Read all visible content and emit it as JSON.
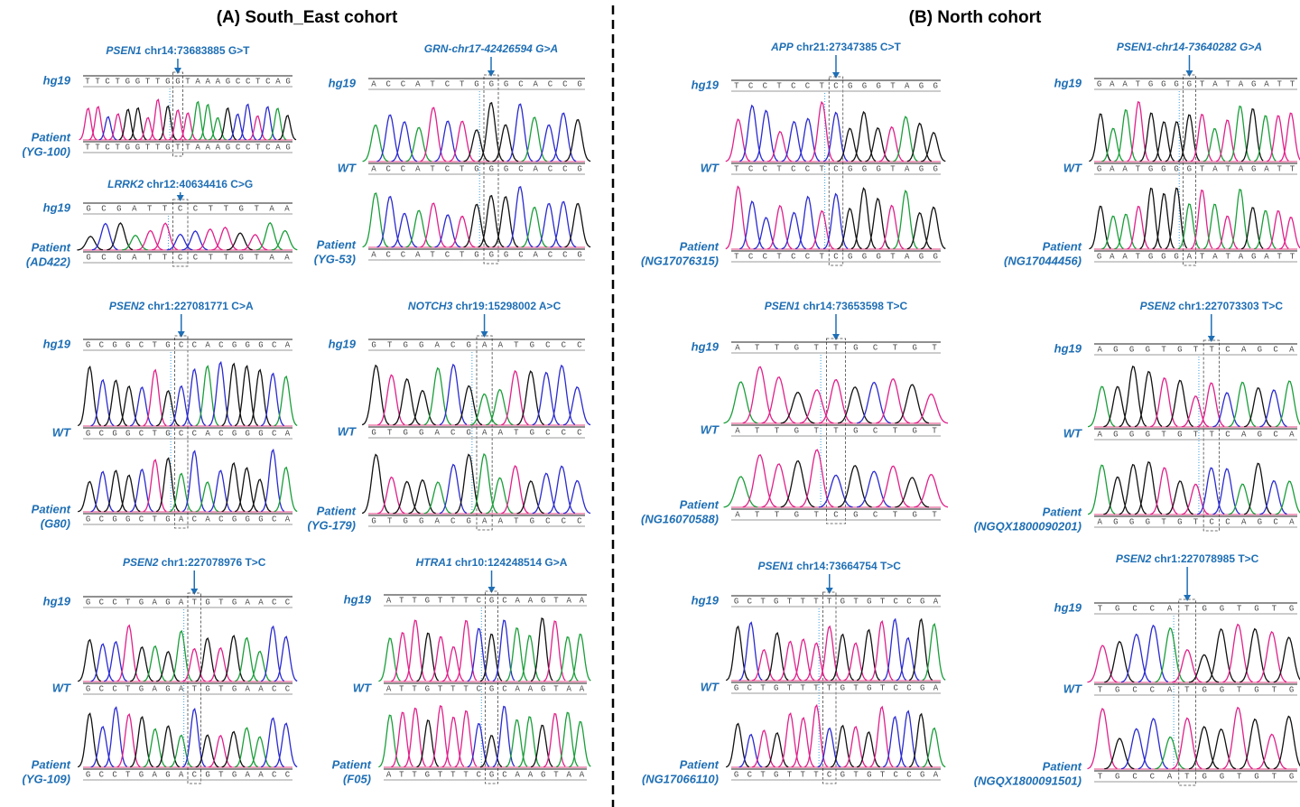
{
  "panels": [
    {
      "title": "(A) South_East cohort",
      "figures": [
        {
          "gene": "PSEN1",
          "locus": "chr14:73683885 G>T",
          "rows": [
            {
              "label": "hg19",
              "sequence": "TTCTGGTTGGTAAAGCCTCAG"
            },
            {
              "label": "Patient",
              "sample": "(YG-100)",
              "sequence": "TTCTGGTTGTTAAAGCCTCAG"
            }
          ]
        },
        {
          "gene": "LRRK2",
          "locus": "chr12:40634416 C>G",
          "rows": [
            {
              "label": "hg19",
              "sequence": "GCGATTCCTTGTAA"
            },
            {
              "label": "Patient",
              "sample": "(AD422)",
              "sequence": "GCGATTCCTTGTAA"
            }
          ]
        },
        {
          "gene": "GRN-chr17-42426594 G>A",
          "rows": [
            {
              "label": "hg19",
              "sequence": "ACCATCTGGGCACCG"
            },
            {
              "label": "WT",
              "sequence": "ACCATCTGGGCACCG"
            },
            {
              "label": "Patient",
              "sample": "(YG-53)",
              "sequence": "ACCATCTGGGCACCG"
            }
          ]
        },
        {
          "gene": "PSEN2",
          "locus": "chr1:227081771 C>A",
          "rows": [
            {
              "label": "hg19",
              "sequence": "GCGGCTGCCACGGGCA"
            },
            {
              "label": "WT",
              "sequence": "GCGGCTGCCACGGGCA"
            },
            {
              "label": "Patient",
              "sample": "(G80)",
              "sequence": "GCGGCTGACACGGGCA"
            }
          ]
        },
        {
          "gene": "NOTCH3",
          "locus": "chr19:15298002 A>C",
          "rows": [
            {
              "label": "hg19",
              "sequence": "GTGGACGAATGCCC"
            },
            {
              "label": "WT",
              "sequence": "GTGGACGAATGCCC"
            },
            {
              "label": "Patient",
              "sample": "(YG-179)",
              "sequence": "GTGGACGAATGCCC"
            }
          ]
        },
        {
          "gene": "PSEN2",
          "locus": "chr1:227078976 T>C",
          "rows": [
            {
              "label": "hg19",
              "sequence": "GCCTGAGATGTGAACC"
            },
            {
              "label": "WT",
              "sequence": "GCCTGAGATGTGAACC"
            },
            {
              "label": "Patient",
              "sample": "(YG-109)",
              "sequence": "GCCTGAGACGTGAACC"
            }
          ]
        },
        {
          "gene": "HTRA1",
          "locus": "chr10:124248514 G>A",
          "rows": [
            {
              "label": "hg19",
              "sequence": "ATTGTTTCGCAAGTAA"
            },
            {
              "label": "WT",
              "sequence": "ATTGTTTCGCAAGTAA"
            },
            {
              "label": "Patient",
              "sample": "(F05)",
              "sequence": "ATTGTTTCGCAAGTAA"
            }
          ]
        }
      ]
    },
    {
      "title": "(B) North cohort",
      "figures": [
        {
          "gene": "APP",
          "locus": "chr21:27347385 C>T",
          "rows": [
            {
              "label": "hg19",
              "sequence": "TCCTCCTCGGGTAGG"
            },
            {
              "label": "WT",
              "sequence": "TCCTCCTCGGGTAGG"
            },
            {
              "label": "Patient",
              "sample": "(NG17076315)",
              "sequence": "TCCTCCTCGGGTAGG"
            }
          ]
        },
        {
          "gene": "PSEN1",
          "locus": "chr14:73653598 T>C",
          "rows": [
            {
              "label": "hg19",
              "sequence": "ATTGTTGCTGT"
            },
            {
              "label": "WT",
              "sequence": "ATTGTTGCTGT"
            },
            {
              "label": "Patient",
              "sample": "(NG16070588)",
              "sequence": "ATTGTCGCTGT"
            }
          ]
        },
        {
          "gene": "PSEN1",
          "locus": "chr14:73664754 T>C",
          "rows": [
            {
              "label": "hg19",
              "sequence": "GCTGTTTTGTGTCCGA"
            },
            {
              "label": "WT",
              "sequence": "GCTGTTTTGTGTCCGA"
            },
            {
              "label": "Patient",
              "sample": "(NG17066110)",
              "sequence": "GCTGTTTCGTGTCCGA"
            }
          ]
        },
        {
          "gene": "PSEN1-chr14-73640282 G>A",
          "rows": [
            {
              "label": "hg19",
              "sequence": "GAATGGGGTATAGATT"
            },
            {
              "label": "WT",
              "sequence": "GAATGGGGTATAGATT"
            },
            {
              "label": "Patient",
              "sample": "(NG17044456)",
              "sequence": "GAATGGGATATAGATT"
            }
          ]
        },
        {
          "gene": "PSEN2",
          "locus": "chr1:227073303 T>C",
          "rows": [
            {
              "label": "hg19",
              "sequence": "AGGGTGTTCAGCA"
            },
            {
              "label": "WT",
              "sequence": "AGGGTGTTCAGCA"
            },
            {
              "label": "Patient",
              "sample": "(NGQX1800090201)",
              "sequence": "AGGGTGTCCAGCA"
            }
          ]
        },
        {
          "gene": "PSEN2",
          "locus": "chr1:227078985 T>C",
          "rows": [
            {
              "label": "hg19",
              "sequence": "TGCCATGGTGTG"
            },
            {
              "label": "WT",
              "sequence": "TGCCATGGTGTG"
            },
            {
              "label": "Patient",
              "sample": "(NGQX1800091501)",
              "sequence": "TGCCATGGTGTG"
            }
          ]
        }
      ]
    }
  ]
}
